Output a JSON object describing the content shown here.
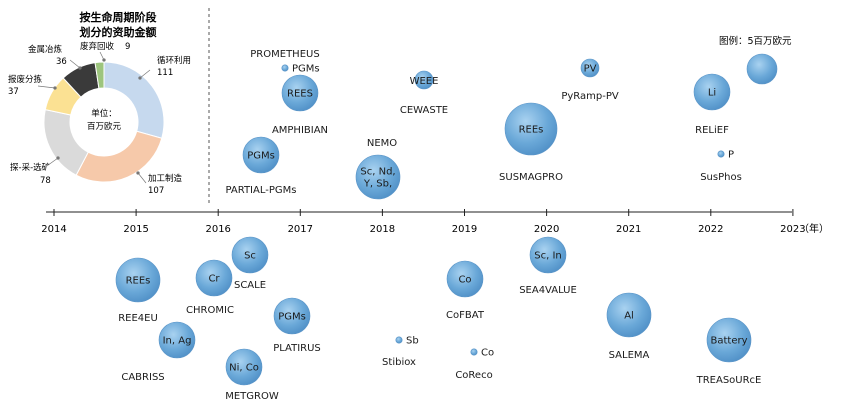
{
  "donut": {
    "title_line1": "按生命周期阶段",
    "title_line2": "划分的资助金额",
    "center_line1": "单位：",
    "center_line2": "百万欧元",
    "segments": [
      {
        "name": "循环利用",
        "value": 111,
        "color": "#c6d9ee"
      },
      {
        "name": "加工制造",
        "value": 107,
        "color": "#f6c9aa"
      },
      {
        "name": "探-采-选矿",
        "value": 78,
        "color": "#dadada"
      },
      {
        "name": "报废分拣",
        "value": 37,
        "color": "#fbe193"
      },
      {
        "name": "金属冶炼",
        "value": 36,
        "color": "#3a3a3a"
      },
      {
        "name": "废弃回收",
        "value": 9,
        "color": "#9dc57e"
      }
    ]
  },
  "legend": {
    "label": "图例：5百万欧元"
  },
  "timeline": {
    "unit": "（年）",
    "years": [
      "2014",
      "2015",
      "2016",
      "2017",
      "2018",
      "2019",
      "2020",
      "2021",
      "2022",
      "2023"
    ]
  },
  "projects_above": [
    {
      "name": "PROMETHEUS",
      "bubble": "PGMs",
      "size": "tiny"
    },
    {
      "name": "AMPHIBIAN",
      "bubble": "REES",
      "size": "medium"
    },
    {
      "name": "PARTIAL-PGMs",
      "bubble": "PGMs",
      "size": "medium"
    },
    {
      "name": "NEMO",
      "bubble": "Sc, Nd, Y, Sb,",
      "size": "large"
    },
    {
      "name": "WEEE",
      "bubble": "",
      "size": "small"
    },
    {
      "name": "CEWASTE",
      "bubble": "",
      "size": "none"
    },
    {
      "name": "SUSMAGPRO",
      "bubble": "REEs",
      "size": "xlarge"
    },
    {
      "name": "PyRamp-PV",
      "bubble": "PV",
      "size": "small"
    },
    {
      "name": "RELiEF",
      "bubble": "Li",
      "size": "medium"
    },
    {
      "name": "SusPhos",
      "bubble": "P",
      "size": "tiny"
    }
  ],
  "projects_below": [
    {
      "name": "REE4EU",
      "bubble": "REEs",
      "size": "large"
    },
    {
      "name": "CHROMIC",
      "bubble": "Cr",
      "size": "medium"
    },
    {
      "name": "SCALE",
      "bubble": "Sc",
      "size": "medium"
    },
    {
      "name": "CABRISS",
      "bubble": "In, Ag",
      "size": "medium"
    },
    {
      "name": "METGROW",
      "bubble": "Ni, Co",
      "size": "medium"
    },
    {
      "name": "PLATIRUS",
      "bubble": "PGMs",
      "size": "medium"
    },
    {
      "name": "Stibiox",
      "bubble": "Sb",
      "size": "tiny"
    },
    {
      "name": "CoFBAT",
      "bubble": "Co",
      "size": "medium"
    },
    {
      "name": "CoReco",
      "bubble": "Co",
      "size": "tiny"
    },
    {
      "name": "SEA4VALUE",
      "bubble": "Sc, In",
      "size": "medium"
    },
    {
      "name": "SALEMA",
      "bubble": "Al",
      "size": "large"
    },
    {
      "name": "TREASoURcE",
      "bubble": "Battery",
      "size": "large"
    }
  ]
}
